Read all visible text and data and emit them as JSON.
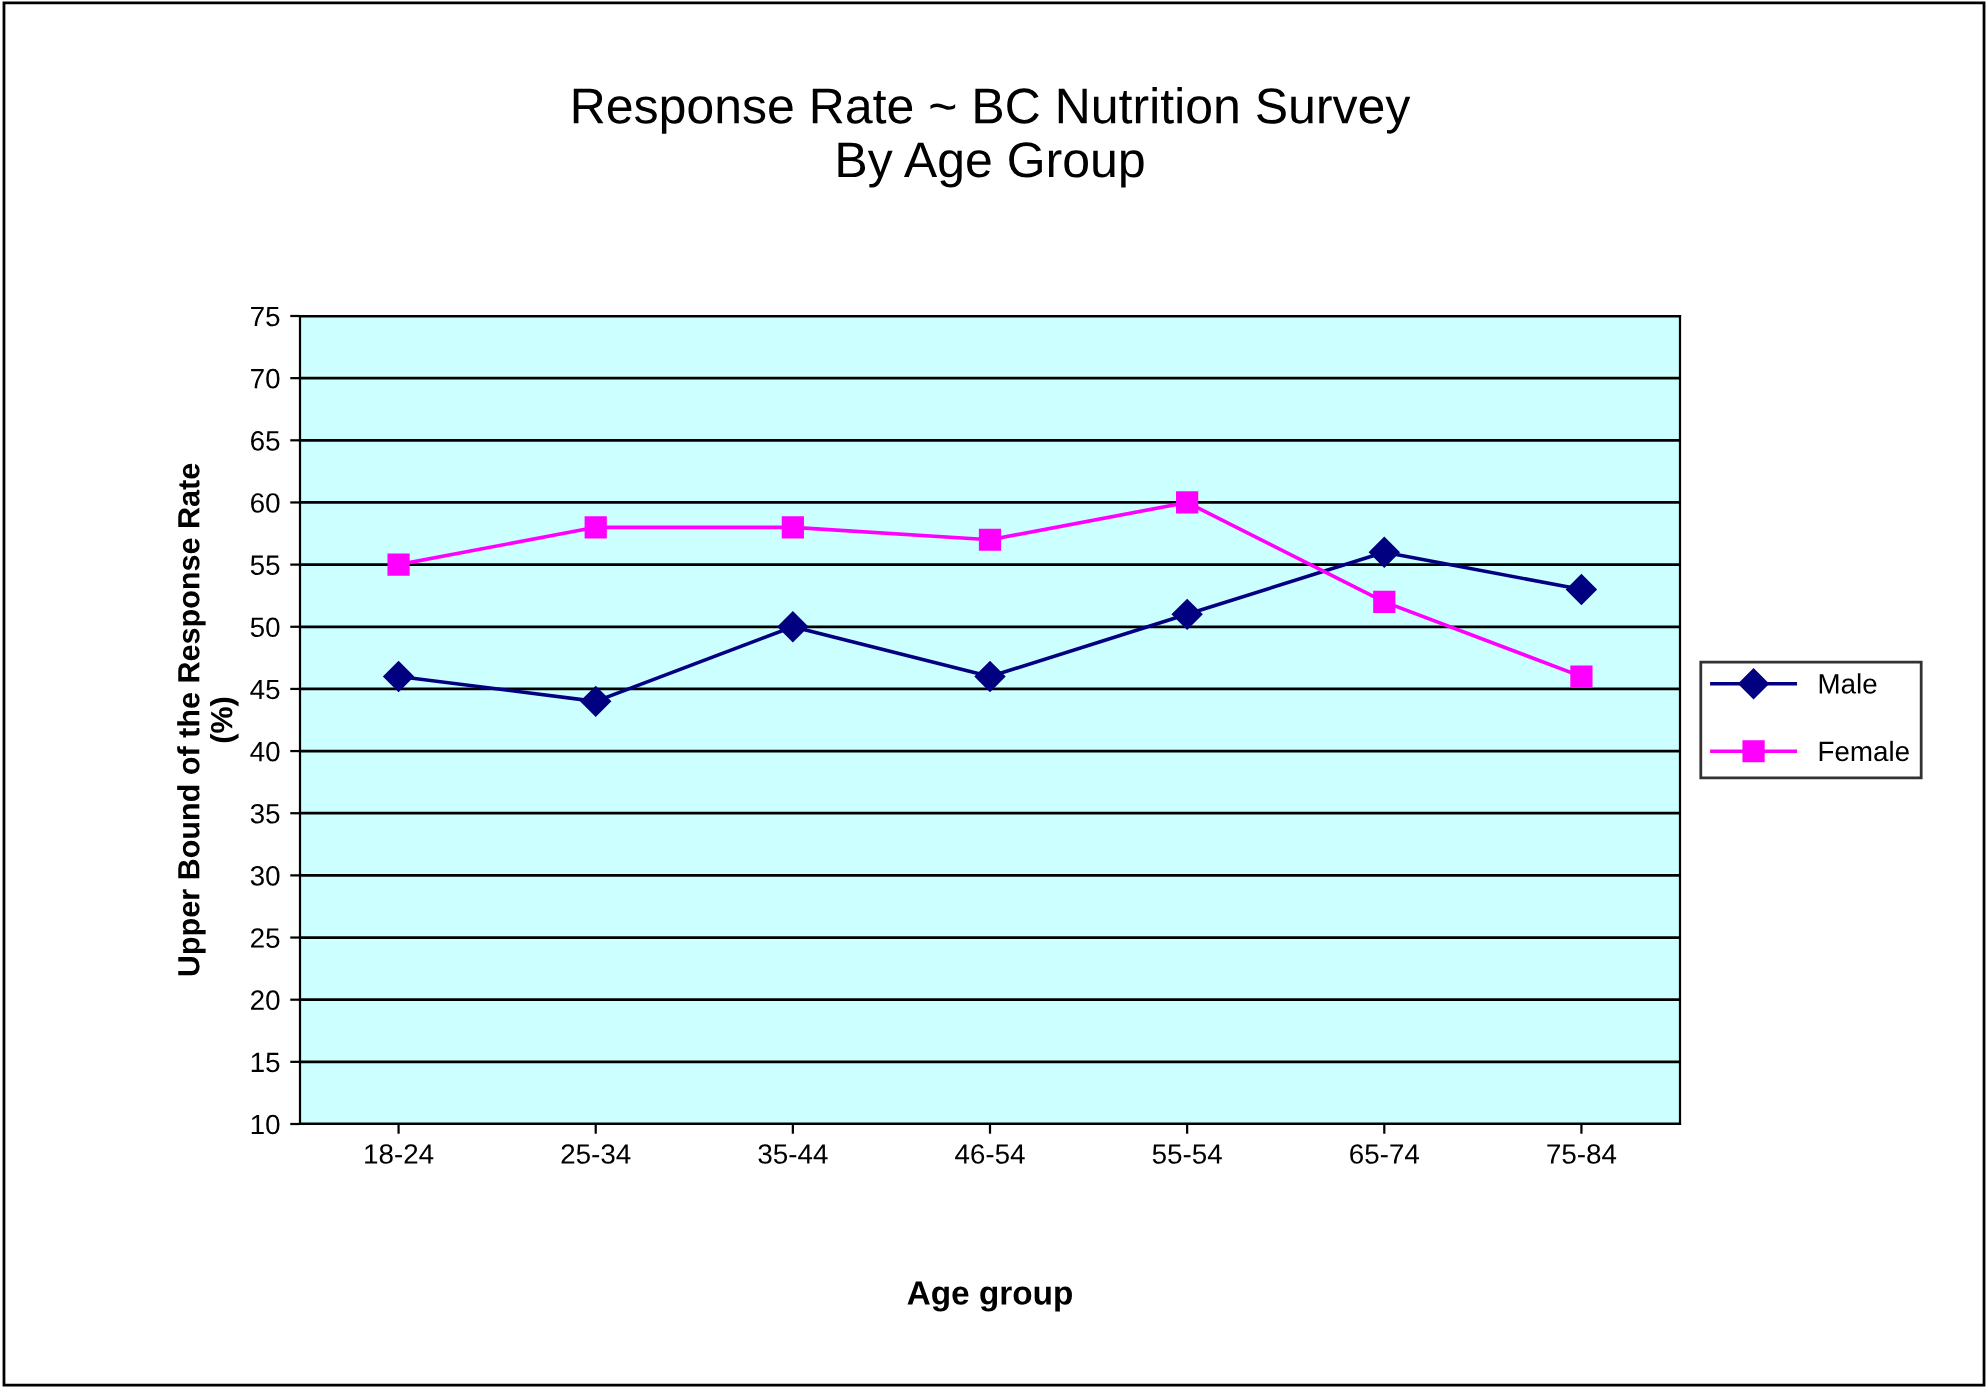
{
  "chart_data": {
    "type": "line",
    "title": "Response Rate ~ BC Nutrition Survey\nBy Age Group",
    "xlabel": "Age group",
    "ylabel": "Upper Bound of the Response Rate\n(%)",
    "categories": [
      "18-24",
      "25-34",
      "35-44",
      "46-54",
      "55-54",
      "65-74",
      "75-84"
    ],
    "series": [
      {
        "name": "Male",
        "color": "#000080",
        "marker": "diamond",
        "values": [
          46,
          44,
          50,
          46,
          51,
          56,
          53
        ]
      },
      {
        "name": "Female",
        "color": "#ff00ff",
        "marker": "square",
        "values": [
          55,
          58,
          58,
          57,
          60,
          52,
          46
        ]
      }
    ],
    "ylim": [
      10,
      75
    ],
    "yticks": [
      10,
      15,
      20,
      25,
      30,
      35,
      40,
      45,
      50,
      55,
      60,
      65,
      70,
      75
    ],
    "grid": "y",
    "legend": "right",
    "line_style": "solid"
  }
}
